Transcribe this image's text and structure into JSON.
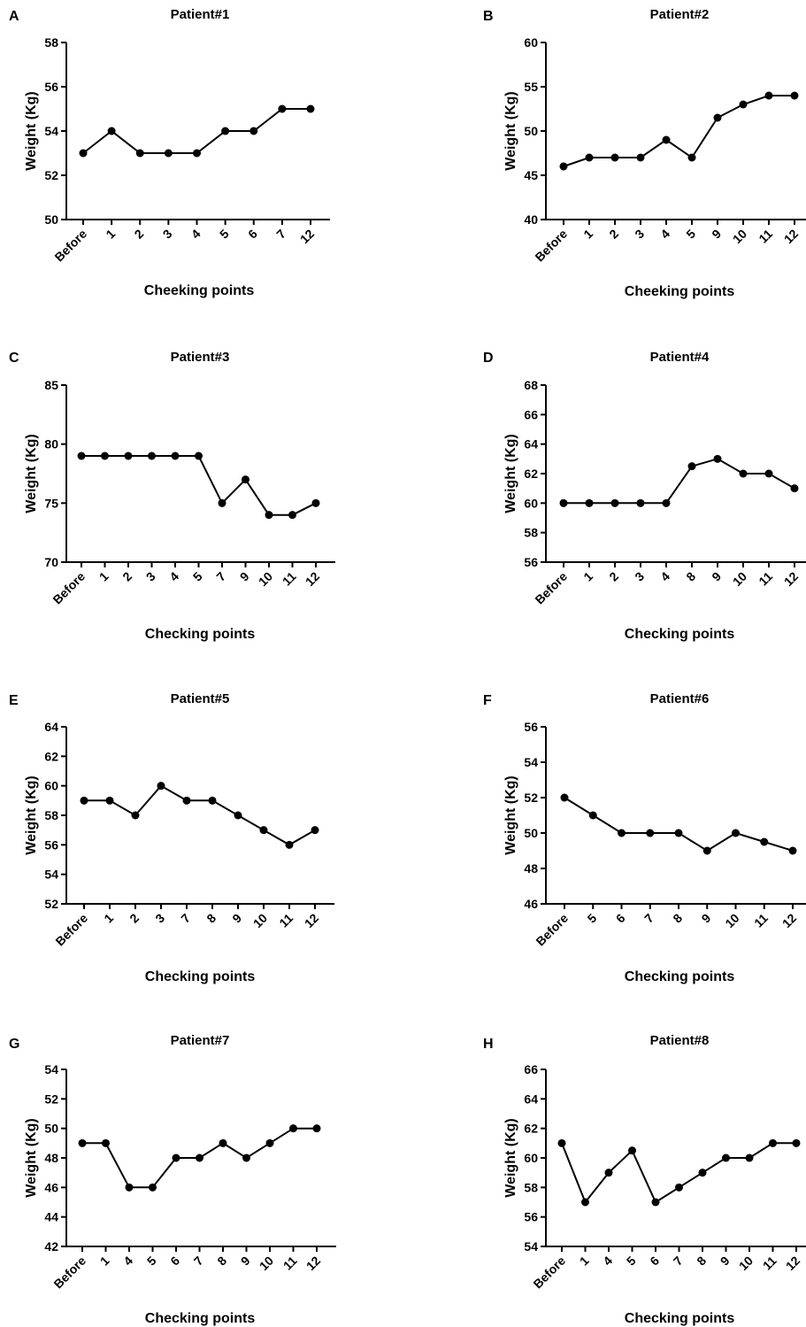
{
  "chart_data": [
    {
      "panel": "A",
      "type": "line",
      "title": "Patient#1",
      "xlabel": "Cheeking points",
      "ylabel": "Weight (Kg)",
      "ylim": [
        50,
        58
      ],
      "yticks": [
        50,
        52,
        54,
        56,
        58
      ],
      "categories": [
        "Before",
        "1",
        "2",
        "3",
        "4",
        "5",
        "6",
        "7",
        "12"
      ],
      "values": [
        53,
        54,
        53,
        53,
        53,
        54,
        54,
        55,
        55
      ]
    },
    {
      "panel": "B",
      "type": "line",
      "title": "Patient#2",
      "xlabel": "Cheeking points",
      "ylabel": "Weight (Kg)",
      "ylim": [
        40,
        60
      ],
      "yticks": [
        40,
        45,
        50,
        55,
        60
      ],
      "categories": [
        "Before",
        "1",
        "2",
        "3",
        "4",
        "5",
        "9",
        "10",
        "11",
        "12"
      ],
      "values": [
        46,
        47,
        47,
        47,
        49,
        47,
        51.5,
        53,
        54,
        54
      ]
    },
    {
      "panel": "C",
      "type": "line",
      "title": "Patient#3",
      "xlabel": "Checking points",
      "ylabel": "Weight (Kg)",
      "ylim": [
        70,
        85
      ],
      "yticks": [
        70,
        75,
        80,
        85
      ],
      "categories": [
        "Before",
        "1",
        "2",
        "3",
        "4",
        "5",
        "7",
        "9",
        "10",
        "11",
        "12"
      ],
      "values": [
        79,
        79,
        79,
        79,
        79,
        79,
        75,
        77,
        74,
        74,
        75
      ]
    },
    {
      "panel": "D",
      "type": "line",
      "title": "Patient#4",
      "xlabel": "Checking points",
      "ylabel": "Weight (Kg)",
      "ylim": [
        56,
        68
      ],
      "yticks": [
        56,
        58,
        60,
        62,
        64,
        66,
        68
      ],
      "categories": [
        "Before",
        "1",
        "2",
        "3",
        "4",
        "8",
        "9",
        "10",
        "11",
        "12"
      ],
      "values": [
        60,
        60,
        60,
        60,
        60,
        62.5,
        63,
        62,
        62,
        61
      ]
    },
    {
      "panel": "E",
      "type": "line",
      "title": "Patient#5",
      "xlabel": "Checking points",
      "ylabel": "Weight (Kg)",
      "ylim": [
        52,
        64
      ],
      "yticks": [
        52,
        54,
        56,
        58,
        60,
        62,
        64
      ],
      "categories": [
        "Before",
        "1",
        "2",
        "3",
        "7",
        "8",
        "9",
        "10",
        "11",
        "12"
      ],
      "values": [
        59,
        59,
        58,
        60,
        59,
        59,
        58,
        57,
        56,
        57
      ]
    },
    {
      "panel": "F",
      "type": "line",
      "title": "Patient#6",
      "xlabel": "Checking points",
      "ylabel": "Weight (Kg)",
      "ylim": [
        46,
        56
      ],
      "yticks": [
        46,
        48,
        50,
        52,
        54,
        56
      ],
      "categories": [
        "Before",
        "5",
        "6",
        "7",
        "8",
        "9",
        "10",
        "11",
        "12"
      ],
      "values": [
        52,
        51,
        50,
        50,
        50,
        49,
        50,
        49.5,
        49
      ]
    },
    {
      "panel": "G",
      "type": "line",
      "title": "Patient#7",
      "xlabel": "Checking points",
      "ylabel": "Weight (Kg)",
      "ylim": [
        42,
        54
      ],
      "yticks": [
        42,
        44,
        46,
        48,
        50,
        52,
        54
      ],
      "categories": [
        "Before",
        "1",
        "4",
        "5",
        "6",
        "7",
        "8",
        "9",
        "10",
        "11",
        "12"
      ],
      "values": [
        49,
        49,
        46,
        46,
        48,
        48,
        49,
        48,
        49,
        50,
        50
      ]
    },
    {
      "panel": "H",
      "type": "line",
      "title": "Patient#8",
      "xlabel": "Checking points",
      "ylabel": "Weight (Kg)",
      "ylim": [
        54,
        66
      ],
      "yticks": [
        54,
        56,
        58,
        60,
        62,
        64,
        66
      ],
      "categories": [
        "Before",
        "1",
        "4",
        "5",
        "6",
        "7",
        "8",
        "9",
        "10",
        "11",
        "12"
      ],
      "values": [
        61,
        57,
        59,
        60.5,
        57,
        58,
        59,
        60,
        60,
        61,
        61
      ]
    }
  ]
}
